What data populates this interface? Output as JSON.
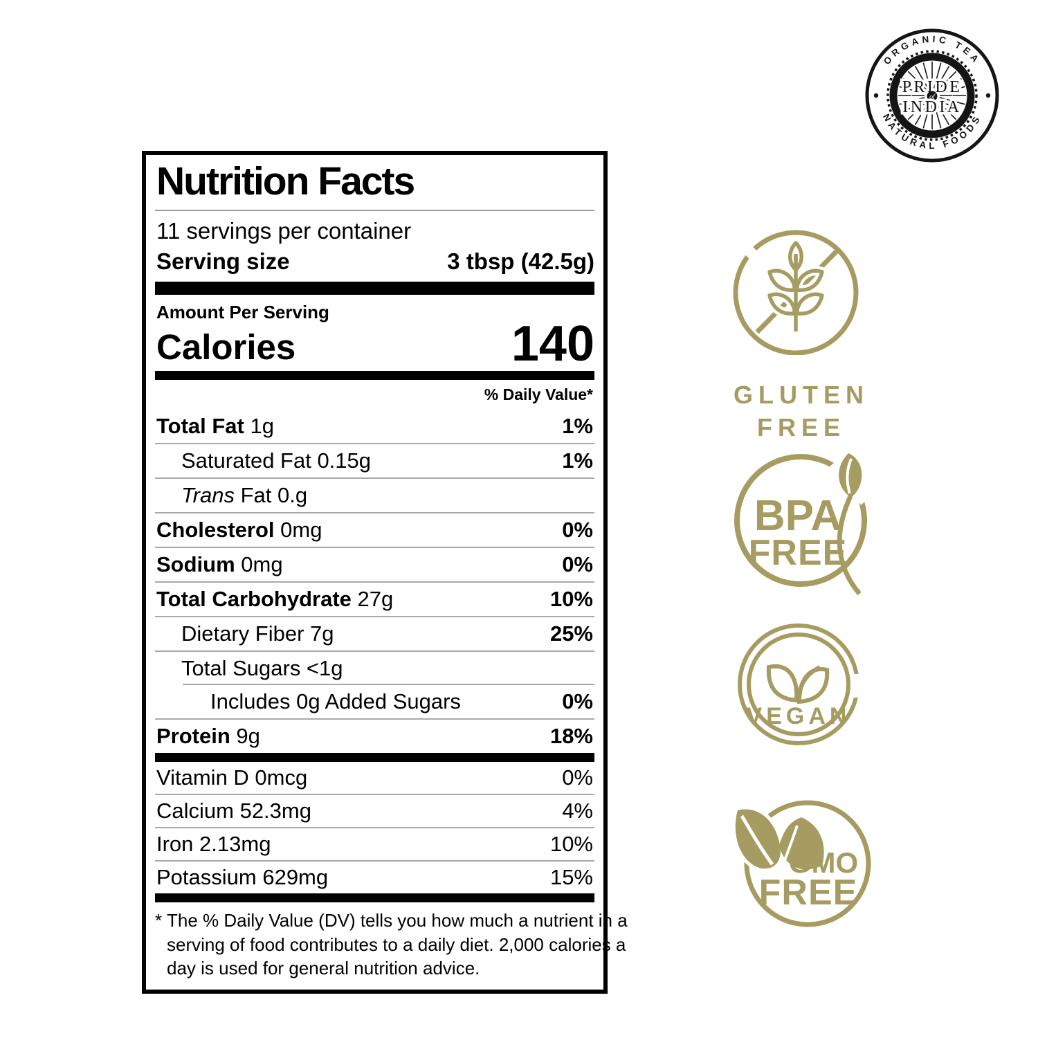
{
  "colors": {
    "badge_gold": "#a69b61",
    "label_ink": "#000000",
    "logo_ink": "#151515",
    "separator_gray": "#a9a9a9"
  },
  "brand_logo": {
    "arc_top": "ORGANIC TEA",
    "arc_bottom": "NATURAL FOODS",
    "center_line1": "PRIDE",
    "center_line2": "of",
    "center_line3": "INDIA"
  },
  "nutrition_label": {
    "title": "Nutrition Facts",
    "servings_per_container": "11 servings per container",
    "serving_size_label": "Serving size",
    "serving_size_value": "3 tbsp (42.5g)",
    "amount_per_serving": "Amount Per Serving",
    "calories_label": "Calories",
    "calories_value": "140",
    "daily_value_header": "% Daily Value*",
    "main_rows": [
      {
        "parts": [
          {
            "t": "Total Fat",
            "b": true
          },
          {
            "t": " 1g"
          }
        ],
        "dv": "1%",
        "dv_bold": true,
        "indent": 0
      },
      {
        "parts": [
          {
            "t": "Saturated Fat 0.15g"
          }
        ],
        "dv": "1%",
        "dv_bold": true,
        "indent": 1
      },
      {
        "parts": [
          {
            "t": "Trans",
            "i": true
          },
          {
            "t": " Fat 0.g"
          }
        ],
        "dv": "",
        "dv_bold": false,
        "indent": 1
      },
      {
        "parts": [
          {
            "t": "Cholesterol",
            "b": true
          },
          {
            "t": " 0mg"
          }
        ],
        "dv": "0%",
        "dv_bold": true,
        "indent": 0
      },
      {
        "parts": [
          {
            "t": "Sodium",
            "b": true
          },
          {
            "t": " 0mg"
          }
        ],
        "dv": "0%",
        "dv_bold": true,
        "indent": 0
      },
      {
        "parts": [
          {
            "t": "Total Carbohydrate",
            "b": true
          },
          {
            "t": " 27g"
          }
        ],
        "dv": "10%",
        "dv_bold": true,
        "indent": 0
      },
      {
        "parts": [
          {
            "t": "Dietary Fiber 7g"
          }
        ],
        "dv": "25%",
        "dv_bold": true,
        "indent": 1
      },
      {
        "parts": [
          {
            "t": "Total Sugars <1g"
          }
        ],
        "dv": "",
        "dv_bold": false,
        "indent": 1
      },
      {
        "parts": [
          {
            "t": "Includes 0g Added Sugars"
          }
        ],
        "dv": "0%",
        "dv_bold": true,
        "indent": 2,
        "sep_indent": true
      },
      {
        "parts": [
          {
            "t": "Protein",
            "b": true
          },
          {
            "t": " 9g"
          }
        ],
        "dv": "18%",
        "dv_bold": true,
        "indent": 0
      }
    ],
    "micronutrient_rows": [
      {
        "parts": [
          {
            "t": "Vitamin D 0mcg"
          }
        ],
        "dv": "0%",
        "dv_bold": false,
        "indent": 0
      },
      {
        "parts": [
          {
            "t": "Calcium 52.3mg"
          }
        ],
        "dv": "4%",
        "dv_bold": false,
        "indent": 0
      },
      {
        "parts": [
          {
            "t": "Iron 2.13mg"
          }
        ],
        "dv": "10%",
        "dv_bold": false,
        "indent": 0
      },
      {
        "parts": [
          {
            "t": "Potassium 629mg"
          }
        ],
        "dv": "15%",
        "dv_bold": false,
        "indent": 0
      }
    ],
    "footnote_marker": "*",
    "footnote_lines": [
      "The % Daily Value (DV) tells you how much a nutrient in a",
      "serving of food contributes to a daily diet. 2,000 calories a",
      "day is used for general nutrition advice."
    ]
  },
  "badges": [
    {
      "id": "gluten-free",
      "line1": "GLUTEN",
      "line2": "FREE"
    },
    {
      "id": "bpa-free",
      "line1": "BPA",
      "line2": "FREE"
    },
    {
      "id": "vegan",
      "line1": "VEGAN"
    },
    {
      "id": "gmo-free",
      "line1": "GMO",
      "line2": "FREE"
    }
  ]
}
